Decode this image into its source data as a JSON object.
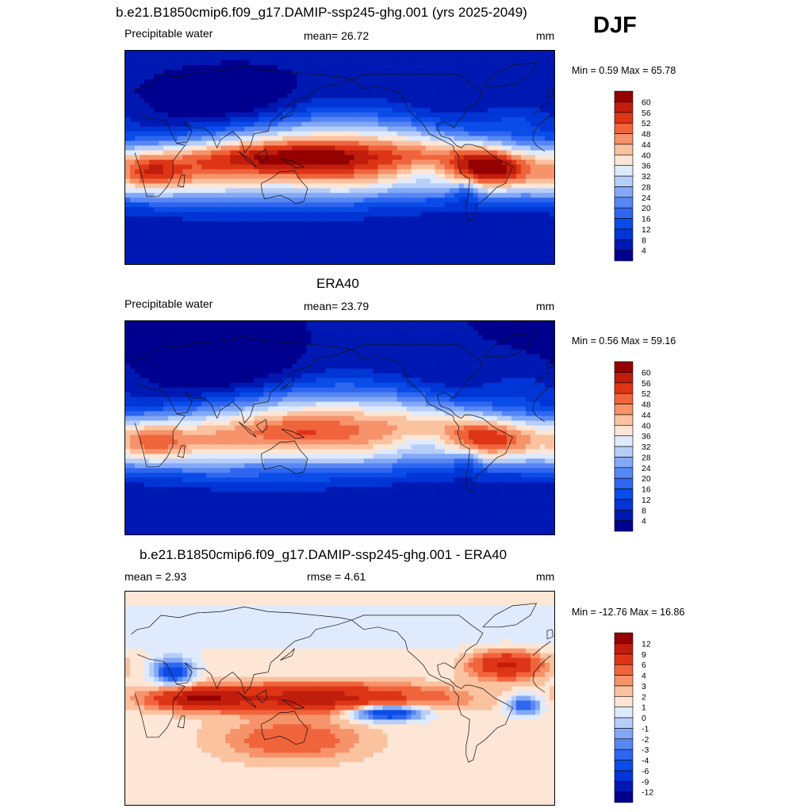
{
  "season": "DJF",
  "panels": [
    {
      "title": "b.e21.B1850cmip6.f09_g17.DAMIP-ssp245-ghg.001 (yrs 2025-2049)",
      "left_label": "Precipitable water",
      "center_label": "mean=  26.72",
      "units": "mm",
      "minmax": "Min =   0.59 Max =  65.78",
      "colorbar": {
        "labels": [
          "4",
          "8",
          "12",
          "16",
          "20",
          "24",
          "28",
          "32",
          "36",
          "40",
          "44",
          "48",
          "52",
          "56",
          "60"
        ],
        "colors": [
          "#00008f",
          "#0019b3",
          "#0035d6",
          "#0a4ce8",
          "#2e66f0",
          "#5787f3",
          "#82a8f6",
          "#b6cdfa",
          "#dfeafd",
          "#fde6d6",
          "#fbc2a0",
          "#f6936a",
          "#f0643c",
          "#de3516",
          "#c01d0d",
          "#940000"
        ]
      },
      "map": {
        "field": "pw_model",
        "colors_ref": "seq"
      }
    },
    {
      "title": "ERA40",
      "left_label": "Precipitable water",
      "center_label": "mean=  23.79",
      "units": "mm",
      "minmax": "Min =   0.56 Max =  59.16",
      "colorbar": {
        "labels": [
          "4",
          "8",
          "12",
          "16",
          "20",
          "24",
          "28",
          "32",
          "36",
          "40",
          "44",
          "48",
          "52",
          "56",
          "60"
        ],
        "colors": [
          "#00008f",
          "#0019b3",
          "#0035d6",
          "#0a4ce8",
          "#2e66f0",
          "#5787f3",
          "#82a8f6",
          "#b6cdfa",
          "#dfeafd",
          "#fde6d6",
          "#fbc2a0",
          "#f6936a",
          "#f0643c",
          "#de3516",
          "#c01d0d",
          "#940000"
        ]
      },
      "map": {
        "field": "pw_obs"
      }
    },
    {
      "title": "b.e21.B1850cmip6.f09_g17.DAMIP-ssp245-ghg.001 - ERA40",
      "left_label": "mean =   2.93",
      "center_label": "rmse =   4.61",
      "units": "mm",
      "minmax": "Min = -12.76 Max =  16.86",
      "colorbar": {
        "labels": [
          "-12",
          "-9",
          "-6",
          "-4",
          "-3",
          "-2",
          "-1",
          "0",
          "1",
          "2",
          "3",
          "4",
          "6",
          "9",
          "12"
        ],
        "colors": [
          "#00008f",
          "#0019b3",
          "#0035d6",
          "#0a4ce8",
          "#2e66f0",
          "#5787f3",
          "#82a8f6",
          "#b6cdfa",
          "#dfeafd",
          "#fde6d6",
          "#fbc2a0",
          "#f6936a",
          "#f0643c",
          "#de3516",
          "#c01d0d",
          "#940000"
        ]
      },
      "map": {
        "field": "pw_diff"
      }
    }
  ],
  "chart_data": [
    {
      "type": "heatmap",
      "title": "b.e21.B1850cmip6.f09_g17.DAMIP-ssp245-ghg.001 (yrs 2025-2049)",
      "subtitle": "Precipitable water",
      "units": "mm",
      "mean": 26.72,
      "min": 0.59,
      "max": 65.78,
      "contour_levels": [
        4,
        8,
        12,
        16,
        20,
        24,
        28,
        32,
        36,
        40,
        44,
        48,
        52,
        56,
        60
      ],
      "x_range": [
        0,
        360
      ],
      "y_range": [
        -90,
        90
      ]
    },
    {
      "type": "heatmap",
      "title": "ERA40",
      "subtitle": "Precipitable water",
      "units": "mm",
      "mean": 23.79,
      "min": 0.56,
      "max": 59.16,
      "contour_levels": [
        4,
        8,
        12,
        16,
        20,
        24,
        28,
        32,
        36,
        40,
        44,
        48,
        52,
        56,
        60
      ],
      "x_range": [
        0,
        360
      ],
      "y_range": [
        -90,
        90
      ]
    },
    {
      "type": "heatmap",
      "title": "b.e21.B1850cmip6.f09_g17.DAMIP-ssp245-ghg.001 - ERA40",
      "units": "mm",
      "mean": 2.93,
      "rmse": 4.61,
      "min": -12.76,
      "max": 16.86,
      "contour_levels": [
        -12,
        -9,
        -6,
        -4,
        -3,
        -2,
        -1,
        0,
        1,
        2,
        3,
        4,
        6,
        9,
        12
      ],
      "x_range": [
        0,
        360
      ],
      "y_range": [
        -90,
        90
      ]
    }
  ]
}
